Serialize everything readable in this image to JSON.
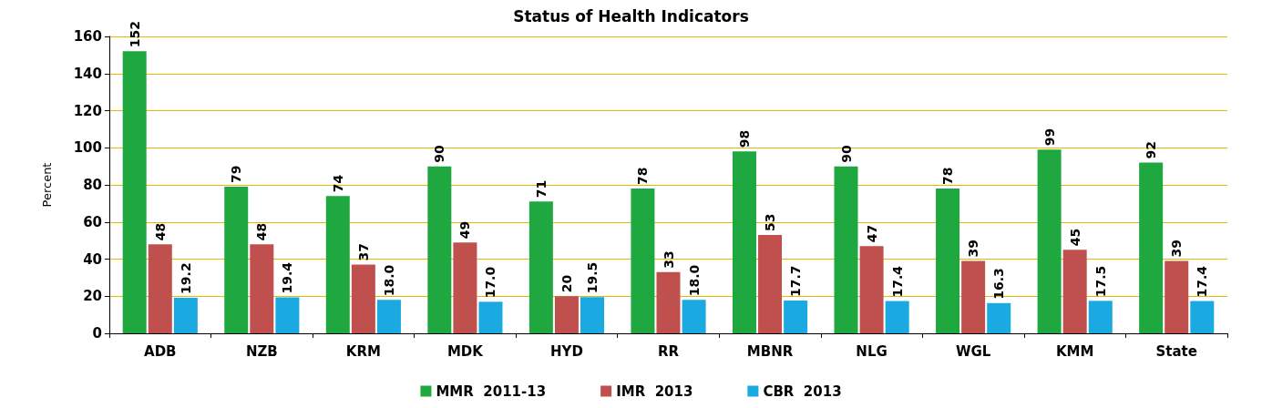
{
  "chart_data": {
    "type": "bar",
    "title": "Status of Health Indicators",
    "ylabel": "Percent",
    "categories": [
      "ADB",
      "NZB",
      "KRM",
      "MDK",
      "HYD",
      "RR",
      "MBNR",
      "NLG",
      "WGL",
      "KMM",
      "State"
    ],
    "series": [
      {
        "name": "MMR  2011-13",
        "color": "#1fa83f",
        "values": [
          152,
          79,
          74,
          90,
          71,
          78,
          98,
          90,
          78,
          99,
          92
        ],
        "value_labels": [
          "152",
          "79",
          "74",
          "90",
          "71",
          "78",
          "98",
          "90",
          "78",
          "99",
          "92"
        ]
      },
      {
        "name": "IMR  2013",
        "color": "#c0504d",
        "values": [
          48,
          48,
          37,
          49,
          20,
          33,
          53,
          47,
          39,
          45,
          39
        ],
        "value_labels": [
          "48",
          "48",
          "37",
          "49",
          "20",
          "33",
          "53",
          "47",
          "39",
          "45",
          "39"
        ]
      },
      {
        "name": "CBR  2013",
        "color": "#1aa9e0",
        "values": [
          19.2,
          19.4,
          18.0,
          17.0,
          19.5,
          18.0,
          17.7,
          17.4,
          16.3,
          17.5,
          17.4
        ],
        "value_labels": [
          "19.2",
          "19.4",
          "18.0",
          "17.0",
          "19.5",
          "18.0",
          "17.7",
          "17.4",
          "16.3",
          "17.5",
          "17.4"
        ]
      }
    ],
    "ylim": [
      0,
      160
    ],
    "yticks": [
      0,
      20,
      40,
      60,
      80,
      100,
      120,
      140,
      160
    ],
    "grid": "y",
    "legend": "bottom"
  }
}
